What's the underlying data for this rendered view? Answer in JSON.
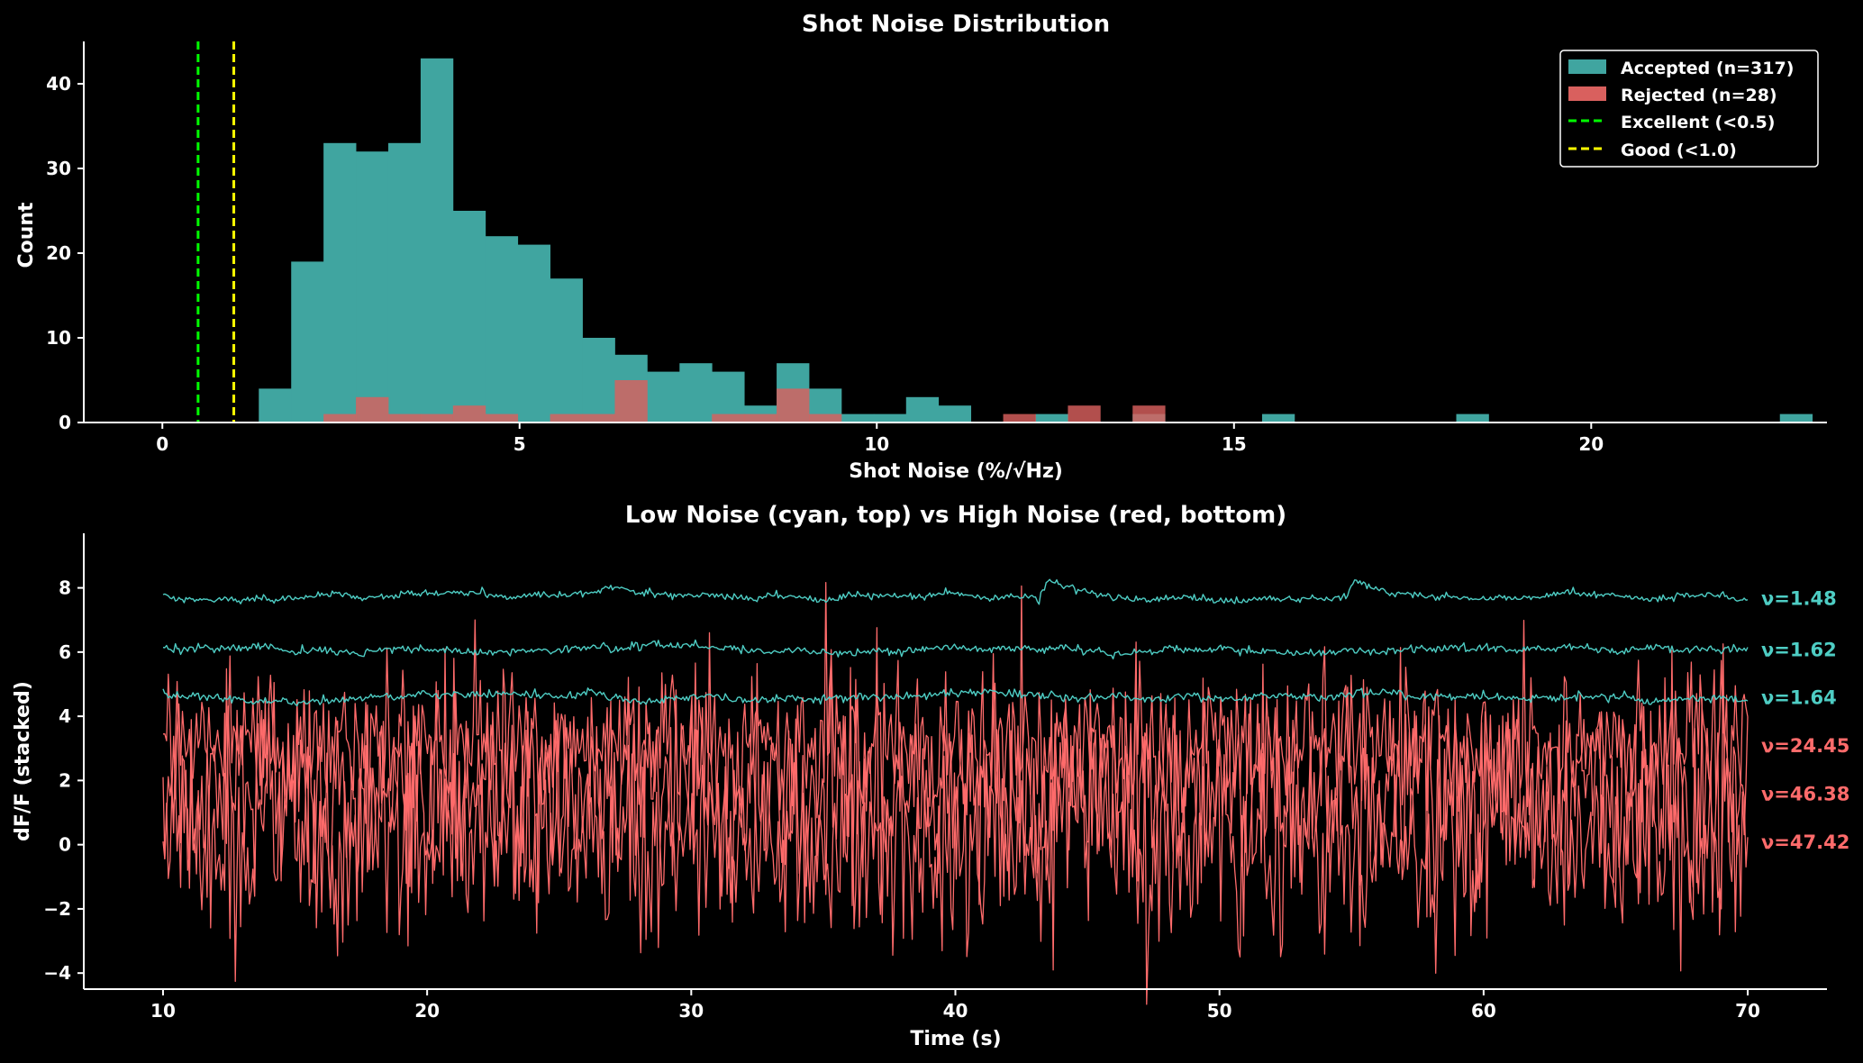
{
  "chart_data": [
    {
      "type": "bar",
      "subtype": "histogram",
      "title": "Shot Noise Distribution",
      "xlabel": "Shot Noise (%/√Hz)",
      "ylabel": "Count",
      "xlim": [
        -1.1,
        23.3
      ],
      "ylim": [
        0,
        45
      ],
      "xticks": [
        0,
        5,
        10,
        15,
        20
      ],
      "yticks": [
        0,
        10,
        20,
        30,
        40
      ],
      "grid": false,
      "legend_position": "top-right",
      "bin_edges_start": 1.35,
      "bin_width": 0.453,
      "series": [
        {
          "name": "Accepted (n=317)",
          "color": "#40a5a0",
          "values": [
            4,
            19,
            33,
            32,
            33,
            43,
            25,
            22,
            21,
            17,
            10,
            8,
            6,
            7,
            6,
            2,
            7,
            4,
            1,
            1,
            3,
            2,
            0,
            0,
            1,
            0,
            0,
            1,
            0,
            0,
            0,
            1,
            0,
            0,
            0,
            0,
            0,
            1,
            0,
            0,
            0,
            0,
            0,
            0,
            0,
            0,
            0,
            1
          ]
        },
        {
          "name": "Rejected (n=28)",
          "color": "#d9605e",
          "values": [
            0,
            0,
            1,
            3,
            1,
            1,
            2,
            1,
            0,
            1,
            1,
            5,
            0,
            0,
            1,
            1,
            4,
            1,
            0,
            0,
            0,
            0,
            0,
            1,
            0,
            2,
            0,
            2,
            0,
            0,
            0,
            0,
            0,
            0,
            0,
            0,
            0,
            0,
            0,
            0,
            0,
            0,
            0,
            0,
            0,
            0,
            0,
            0
          ]
        }
      ],
      "reference_lines": [
        {
          "name": "Excellent (<0.5)",
          "x": 0.5,
          "color": "#00ff00",
          "style": "dashed"
        },
        {
          "name": "Good (<1.0)",
          "x": 1.0,
          "color": "#ffff00",
          "style": "dashed"
        }
      ]
    },
    {
      "type": "line",
      "title": "Low Noise (cyan, top) vs High Noise (red, bottom)",
      "xlabel": "Time (s)",
      "ylabel": "dF/F (stacked)",
      "xlim": [
        7,
        73
      ],
      "ylim": [
        -4.5,
        9.7
      ],
      "xticks": [
        10,
        20,
        30,
        40,
        50,
        60,
        70
      ],
      "yticks": [
        -4,
        -2,
        0,
        2,
        4,
        6,
        8
      ],
      "ytick_labels": [
        "−4",
        "−2",
        "0",
        "2",
        "4",
        "6",
        "8"
      ],
      "grid": false,
      "x_range": [
        10,
        70
      ],
      "series": [
        {
          "label": "ν=1.48",
          "color": "#4ecdc4",
          "baseline": 7.7,
          "noise": 0.05,
          "events": [
            [
              26.5,
              0.3
            ],
            [
              43.2,
              0.7
            ],
            [
              54.8,
              0.6
            ]
          ]
        },
        {
          "label": "ν=1.62",
          "color": "#4ecdc4",
          "baseline": 6.1,
          "noise": 0.06,
          "events": []
        },
        {
          "label": "ν=1.64",
          "color": "#4ecdc4",
          "baseline": 4.6,
          "noise": 0.06,
          "events": []
        },
        {
          "label": "ν=24.45",
          "color": "#ff6b6b",
          "baseline": 3.1,
          "noise": 1.0,
          "events": []
        },
        {
          "label": "ν=46.38",
          "color": "#ff6b6b",
          "baseline": 1.6,
          "noise": 1.6,
          "events": []
        },
        {
          "label": "ν=47.42",
          "color": "#ff6b6b",
          "baseline": 0.1,
          "noise": 1.6,
          "events": []
        }
      ]
    }
  ]
}
